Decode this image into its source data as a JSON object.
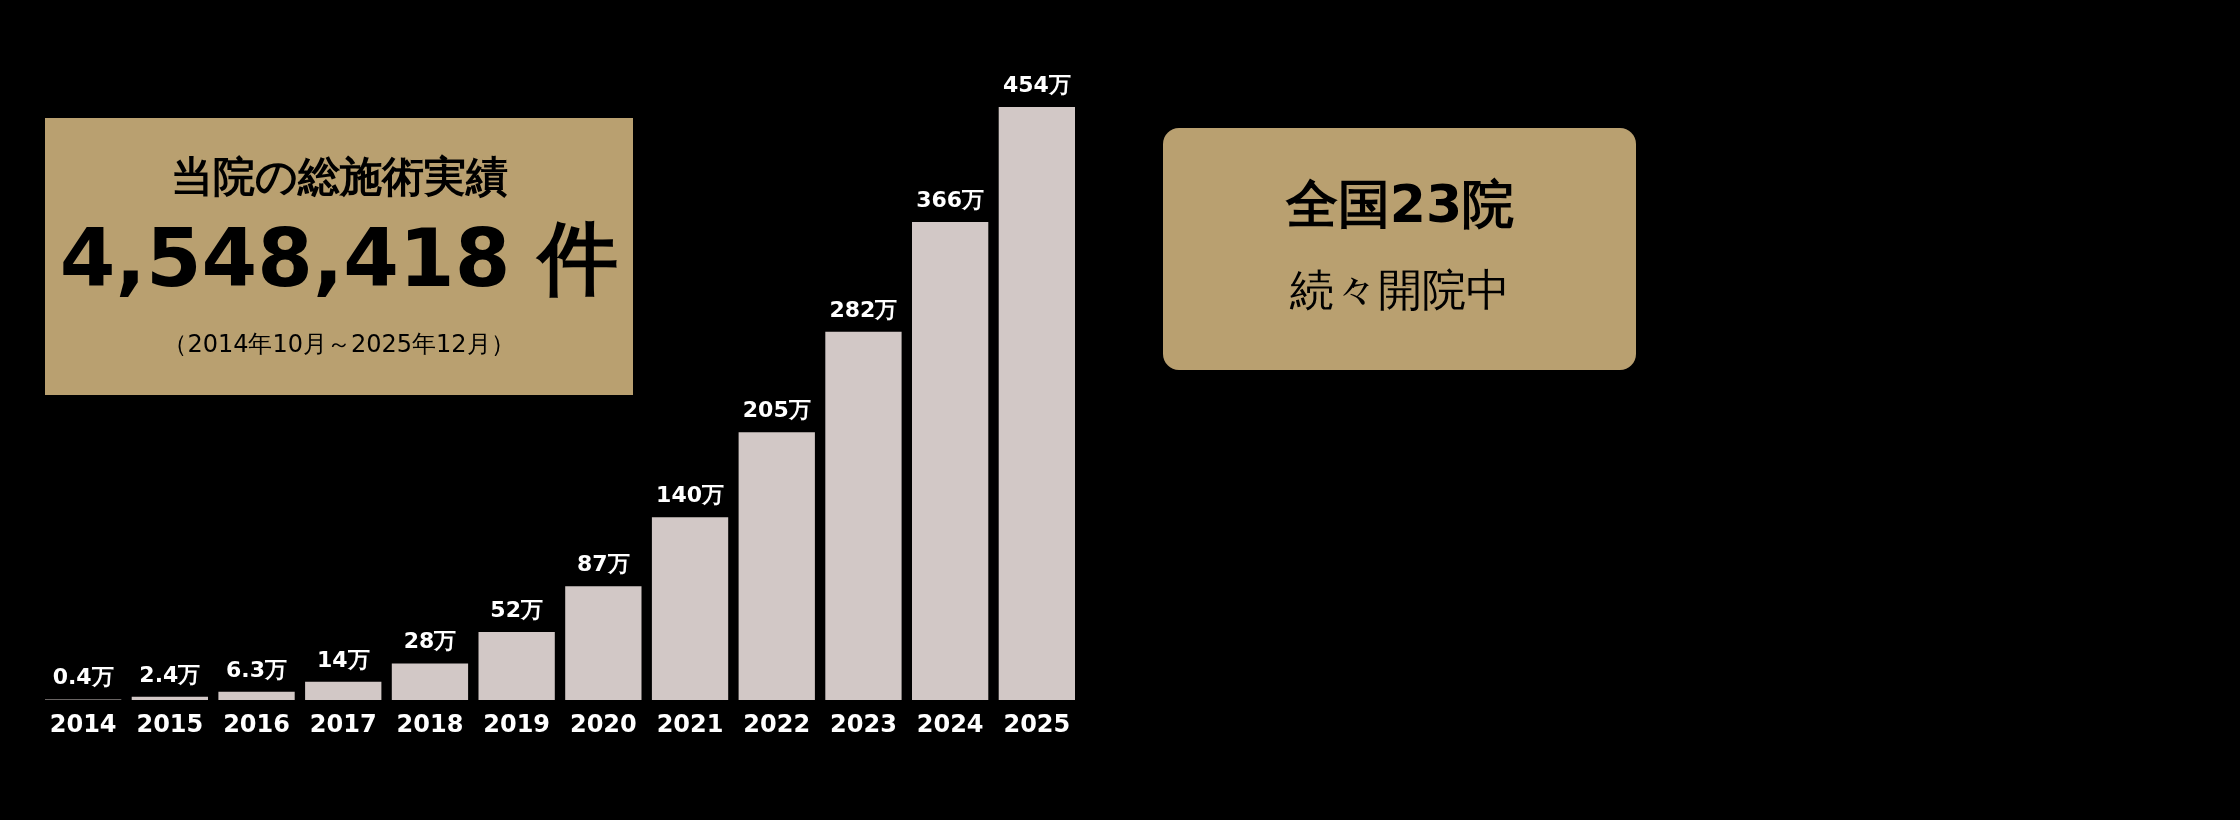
{
  "chart_data": {
    "type": "bar",
    "title": "当院の総施術実績",
    "subtitle": "4,548,418 件",
    "categories": [
      "2014",
      "2015",
      "2016",
      "2017",
      "2018",
      "2019",
      "2020",
      "2021",
      "2022",
      "2023",
      "2024",
      "2025"
    ],
    "values": [
      0.4,
      2.4,
      6.3,
      14,
      28,
      52,
      87,
      140,
      205,
      282,
      366,
      454
    ],
    "value_labels": [
      "0.4万",
      "2.4万",
      "6.3万",
      "14万",
      "28万",
      "52万",
      "87万",
      "140万",
      "205万",
      "282万",
      "366万",
      "454万"
    ],
    "color": "#d2c8c6",
    "annotations": [
      "（2014年10月～2025年12月）",
      "全国23院",
      "続々開院中"
    ],
    "grid": false
  }
}
